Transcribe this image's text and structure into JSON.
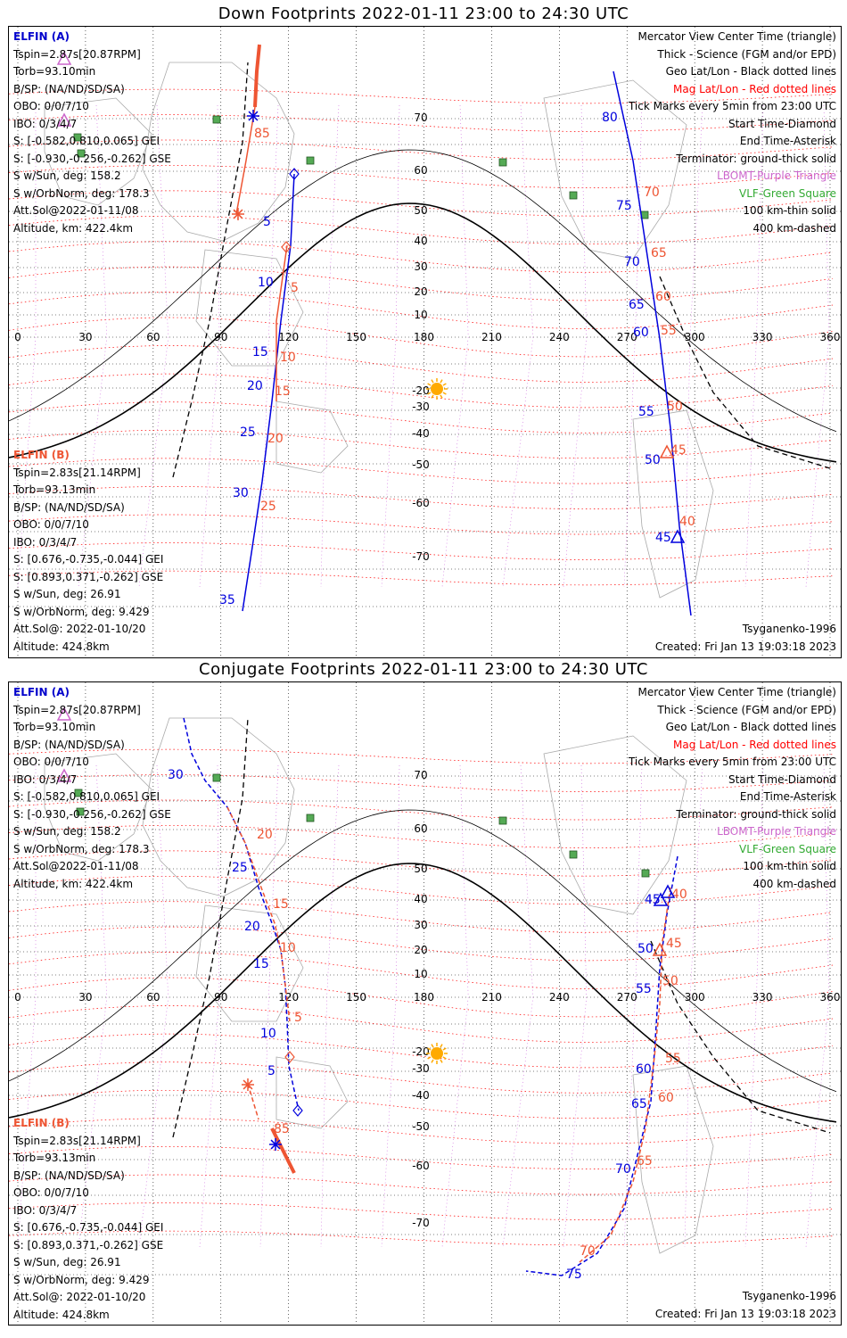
{
  "panels": [
    {
      "title": "Down Footprints 2022-01-11 23:00 to 24:30 UTC",
      "elfin_a": {
        "header": "ELFIN (A)",
        "lines": [
          "Tspin=2.87s[20.87RPM]",
          "Torb=93.10min",
          "B/SP: (NA/ND/SD/SA)",
          "OBO: 0/0/7/10",
          "IBO: 0/3/4/7",
          "S: [-0.582,0.810,0.065] GEI",
          "S: [-0.930,-0.256,-0.262] GSE",
          "S w/Sun, deg: 158.2",
          "S w/OrbNorm, deg: 178.3",
          "Att.Sol@2022-01-11/08",
          "Altitude, km: 422.4km"
        ]
      },
      "elfin_b": {
        "header": "ELFIN (B)",
        "lines": [
          "Tspin=2.83s[21.14RPM]",
          "Torb=93.13min",
          "B/SP: (NA/ND/SD/SA)",
          "OBO: 0/0/7/10",
          "IBO: 0/3/4/7",
          "S: [0.676,-0.735,-0.044] GEI",
          "S: [0.893,0.371,-0.262] GSE",
          "S w/Sun, deg: 26.91",
          "S w/OrbNorm, deg: 9.429",
          "Att.Sol@: 2022-01-10/20",
          "Altitude: 424.8km"
        ]
      },
      "legend": [
        {
          "text": "Mercator View Center Time (triangle)",
          "color": "black"
        },
        {
          "text": "Thick - Science (FGM and/or EPD)",
          "color": "black"
        },
        {
          "text": "Geo Lat/Lon - Black dotted lines",
          "color": "black"
        },
        {
          "text": "Mag Lat/Lon - Red dotted lines",
          "color": "red"
        },
        {
          "text": "Tick Marks every 5min from 23:00 UTC",
          "color": "black"
        },
        {
          "text": "Start Time-Diamond",
          "color": "black"
        },
        {
          "text": "End Time-Asterisk",
          "color": "black"
        },
        {
          "text": "Terminator: ground-thick solid",
          "color": "black"
        },
        {
          "text": "LBOMT-Purple Triangle",
          "color": "purple"
        },
        {
          "text": "VLF-Green Square",
          "color": "green"
        },
        {
          "text": "100 km-thin solid",
          "color": "black"
        },
        {
          "text": "400 km-dashed",
          "color": "black"
        }
      ],
      "model": "Tsyganenko-1996",
      "created": "Created: Fri Jan 13 19:03:18 2023"
    },
    {
      "title": "Conjugate Footprints 2022-01-11 23:00 to 24:30 UTC",
      "elfin_a": {
        "header": "ELFIN (A)",
        "lines": [
          "Tspin=2.87s[20.87RPM]",
          "Torb=93.10min",
          "B/SP: (NA/ND/SD/SA)",
          "OBO: 0/0/7/10",
          "IBO: 0/3/4/7",
          "S: [-0.582,0.810,0.065] GEI",
          "S: [-0.930,-0.256,-0.262] GSE",
          "S w/Sun, deg: 158.2",
          "S w/OrbNorm, deg: 178.3",
          "Att.Sol@2022-01-11/08",
          "Altitude, km: 422.4km"
        ]
      },
      "elfin_b": {
        "header": "ELFIN (B)",
        "lines": [
          "Tspin=2.83s[21.14RPM]",
          "Torb=93.13min",
          "B/SP: (NA/ND/SD/SA)",
          "OBO: 0/0/7/10",
          "IBO: 0/3/4/7",
          "S: [0.676,-0.735,-0.044] GEI",
          "S: [0.893,0.371,-0.262] GSE",
          "S w/Sun, deg: 26.91",
          "S w/OrbNorm, deg: 9.429",
          "Att.Sol@: 2022-01-10/20",
          "Altitude: 424.8km"
        ]
      },
      "legend": [
        {
          "text": "Mercator View Center Time (triangle)",
          "color": "black"
        },
        {
          "text": "Thick - Science (FGM and/or EPD)",
          "color": "black"
        },
        {
          "text": "Geo Lat/Lon - Black dotted lines",
          "color": "black"
        },
        {
          "text": "Mag Lat/Lon - Red dotted lines",
          "color": "red"
        },
        {
          "text": "Tick Marks every 5min from 23:00 UTC",
          "color": "black"
        },
        {
          "text": "Start Time-Diamond",
          "color": "black"
        },
        {
          "text": "End Time-Asterisk",
          "color": "black"
        },
        {
          "text": "Terminator: ground-thick solid",
          "color": "black"
        },
        {
          "text": "LBOMT-Purple Triangle",
          "color": "purple"
        },
        {
          "text": "VLF-Green Square",
          "color": "green"
        },
        {
          "text": "100 km-thin solid",
          "color": "black"
        },
        {
          "text": "400 km-dashed",
          "color": "black"
        }
      ],
      "model": "Tsyganenko-1996",
      "created": "Created: Fri Jan 13 19:03:18 2023"
    }
  ],
  "map": {
    "lon_ticks": [
      "0",
      "30",
      "60",
      "90",
      "120",
      "150",
      "180",
      "210",
      "240",
      "270",
      "300",
      "330",
      "360"
    ],
    "lat_ticks": [
      "70",
      "60",
      "50",
      "40",
      "30",
      "20",
      "10",
      "-20",
      "-30",
      "-40",
      "-50",
      "-60",
      "-70"
    ]
  },
  "colors": {
    "elfin_a": "#0000dd",
    "elfin_b": "#ee5533",
    "mag_grid": "#ff0000",
    "geo_grid": "#000000",
    "sun": "#ffaa00",
    "vlf": "#55aa55"
  },
  "tracks": {
    "down": {
      "a_west_labels": [
        "5",
        "10",
        "15",
        "20",
        "25",
        "30",
        "35"
      ],
      "b_west_labels": [
        "85",
        "5",
        "10",
        "15",
        "20",
        "25"
      ],
      "a_east_labels": [
        "80",
        "75",
        "70",
        "65",
        "60",
        "55",
        "50",
        "45"
      ],
      "b_east_labels": [
        "70",
        "65",
        "60",
        "55",
        "50",
        "45",
        "40"
      ]
    },
    "conj": {
      "a_west_labels": [
        "30",
        "25",
        "20",
        "15",
        "10",
        "5"
      ],
      "b_west_labels": [
        "20",
        "15",
        "10",
        "5",
        "85"
      ],
      "a_east_labels": [
        "45",
        "50",
        "55",
        "60",
        "65",
        "70",
        "75"
      ],
      "b_east_labels": [
        "40",
        "45",
        "50",
        "55",
        "60",
        "65",
        "70"
      ]
    }
  }
}
